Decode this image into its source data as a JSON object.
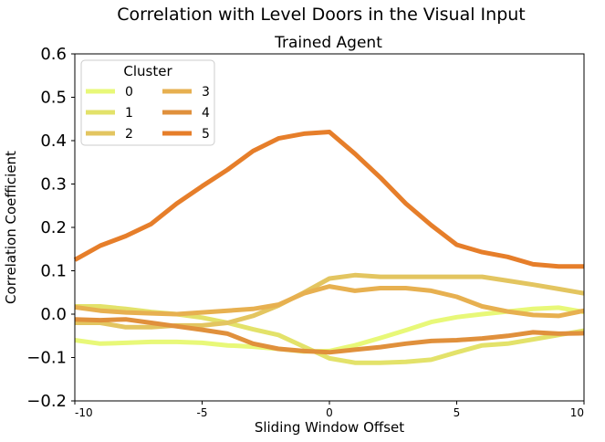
{
  "chart_data": {
    "type": "line",
    "suptitle": "Correlation with Level Doors in the Visual Input",
    "title": "Trained Agent",
    "xlabel": "Sliding Window Offset",
    "ylabel": "Correlation Coefficient",
    "xlim": [
      -10,
      10
    ],
    "ylim": [
      -0.2,
      0.6
    ],
    "xticks": [
      -10,
      -5,
      0,
      5,
      10
    ],
    "xtick_labels": [
      "-10",
      "-5",
      "0",
      "5",
      "10"
    ],
    "yticks": [
      -0.2,
      -0.1,
      0.0,
      0.1,
      0.2,
      0.3,
      0.4,
      0.5,
      0.6
    ],
    "ytick_labels": [
      "−0.2",
      "−0.1",
      "0.0",
      "0.1",
      "0.2",
      "0.3",
      "0.4",
      "0.5",
      "0.6"
    ],
    "grid": false,
    "legend": {
      "title": "Cluster",
      "placement": "top-left",
      "columns": 2
    },
    "x": [
      -10,
      -9,
      -8,
      -7,
      -6,
      -5,
      -4,
      -3,
      -2,
      -1,
      0,
      1,
      2,
      3,
      4,
      5,
      6,
      7,
      8,
      9,
      10
    ],
    "series": [
      {
        "name": "0",
        "color": "#e8f878",
        "values": [
          -0.06,
          -0.068,
          -0.066,
          -0.064,
          -0.064,
          -0.066,
          -0.072,
          -0.075,
          -0.08,
          -0.086,
          -0.085,
          -0.072,
          -0.055,
          -0.037,
          -0.018,
          -0.007,
          0.0,
          0.006,
          0.012,
          0.015,
          0.005
        ]
      },
      {
        "name": "1",
        "color": "#e3e26a",
        "values": [
          0.018,
          0.018,
          0.012,
          0.005,
          0.0,
          -0.008,
          -0.02,
          -0.035,
          -0.048,
          -0.075,
          -0.102,
          -0.112,
          -0.112,
          -0.11,
          -0.105,
          -0.088,
          -0.072,
          -0.068,
          -0.058,
          -0.048,
          -0.038
        ]
      },
      {
        "name": "2",
        "color": "#e3c560",
        "values": [
          -0.02,
          -0.02,
          -0.03,
          -0.03,
          -0.026,
          -0.026,
          -0.02,
          -0.004,
          0.02,
          0.05,
          0.082,
          0.09,
          0.086,
          0.086,
          0.086,
          0.086,
          0.086,
          0.077,
          0.068,
          0.058,
          0.048
        ]
      },
      {
        "name": "3",
        "color": "#e7b050",
        "values": [
          0.016,
          0.008,
          0.004,
          0.002,
          0.0,
          0.004,
          0.008,
          0.012,
          0.022,
          0.048,
          0.064,
          0.054,
          0.06,
          0.06,
          0.054,
          0.04,
          0.018,
          0.006,
          -0.002,
          -0.004,
          0.008
        ]
      },
      {
        "name": "4",
        "color": "#e0903c",
        "values": [
          -0.012,
          -0.014,
          -0.012,
          -0.02,
          -0.028,
          -0.036,
          -0.045,
          -0.068,
          -0.08,
          -0.085,
          -0.088,
          -0.082,
          -0.076,
          -0.068,
          -0.062,
          -0.06,
          -0.056,
          -0.05,
          -0.042,
          -0.045,
          -0.044
        ]
      },
      {
        "name": "5",
        "color": "#e67e2a",
        "values": [
          0.125,
          0.158,
          0.18,
          0.208,
          0.255,
          0.295,
          0.333,
          0.376,
          0.405,
          0.416,
          0.42,
          0.37,
          0.315,
          0.255,
          0.205,
          0.16,
          0.143,
          0.132,
          0.115,
          0.11,
          0.11
        ]
      }
    ]
  }
}
